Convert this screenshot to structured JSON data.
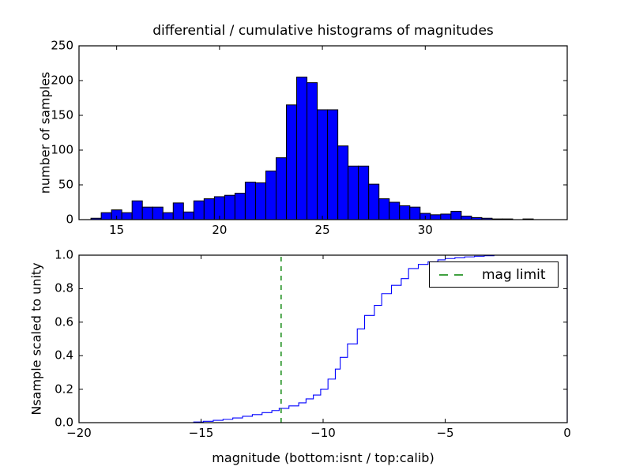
{
  "figure_title": "differential / cumulative histograms of magnitudes",
  "colors": {
    "bar_fill": "#0000ff",
    "bar_edge": "#000000",
    "line": "#0000ff",
    "mag_limit": "#008000",
    "frame": "#000000",
    "background": "#ffffff"
  },
  "legend": {
    "label": "mag limit",
    "position": "upper right"
  },
  "chart_data": [
    {
      "type": "bar",
      "subplot": "top",
      "title": "differential / cumulative histograms of magnitudes",
      "ylabel": "number of samples",
      "bin_start": 13.75,
      "bin_width": 0.5,
      "counts": [
        2,
        10,
        14,
        10,
        27,
        18,
        18,
        10,
        24,
        11,
        27,
        30,
        33,
        35,
        38,
        54,
        53,
        70,
        89,
        165,
        205,
        197,
        158,
        158,
        106,
        77,
        77,
        51,
        30,
        25,
        20,
        18,
        9,
        7,
        8,
        12,
        5,
        3,
        2,
        1,
        1,
        0,
        1,
        0,
        0
      ],
      "xlim": [
        13.17,
        36.9
      ],
      "ylim": [
        0,
        250
      ],
      "xticks": [
        15,
        20,
        25,
        30
      ],
      "xtick_labels": [
        "15",
        "20",
        "25",
        "30"
      ],
      "yticks": [
        0,
        50,
        100,
        150,
        200,
        250
      ],
      "ytick_labels": [
        "0",
        "50",
        "100",
        "150",
        "200",
        "250"
      ],
      "grid": false
    },
    {
      "type": "line",
      "subplot": "bottom",
      "style": "cumulative-step",
      "xlabel": "magnitude (bottom:isnt / top:calib)",
      "ylabel": "Nsample scaled to unity",
      "xlim": [
        -20,
        0
      ],
      "ylim": [
        0.0,
        1.0
      ],
      "xticks": [
        -20,
        -15,
        -10,
        -5,
        0
      ],
      "xtick_labels": [
        "−20",
        "−15",
        "−10",
        "−5",
        "0"
      ],
      "yticks": [
        0,
        0.2,
        0.4,
        0.6,
        0.8,
        1
      ],
      "ytick_labels": [
        "0.0",
        "0.2",
        "0.4",
        "0.6",
        "0.8",
        "1.0"
      ],
      "grid": false,
      "steps": [
        [
          -15.3,
          0.004
        ],
        [
          -14.9,
          0.008
        ],
        [
          -14.5,
          0.014
        ],
        [
          -14.1,
          0.02
        ],
        [
          -13.7,
          0.028
        ],
        [
          -13.3,
          0.038
        ],
        [
          -12.9,
          0.048
        ],
        [
          -12.5,
          0.06
        ],
        [
          -12.1,
          0.072
        ],
        [
          -11.8,
          0.085
        ],
        [
          -11.4,
          0.1
        ],
        [
          -11.0,
          0.118
        ],
        [
          -10.7,
          0.142
        ],
        [
          -10.4,
          0.165
        ],
        [
          -10.1,
          0.2
        ],
        [
          -9.8,
          0.26
        ],
        [
          -9.5,
          0.32
        ],
        [
          -9.3,
          0.39
        ],
        [
          -9.0,
          0.47
        ],
        [
          -8.6,
          0.56
        ],
        [
          -8.3,
          0.64
        ],
        [
          -7.9,
          0.7
        ],
        [
          -7.6,
          0.77
        ],
        [
          -7.2,
          0.82
        ],
        [
          -6.8,
          0.86
        ],
        [
          -6.5,
          0.92
        ],
        [
          -6.1,
          0.945
        ],
        [
          -5.7,
          0.96
        ],
        [
          -5.3,
          0.972
        ],
        [
          -5.0,
          0.98
        ],
        [
          -4.6,
          0.985
        ],
        [
          -4.2,
          0.99
        ],
        [
          -3.8,
          0.994
        ],
        [
          -3.4,
          0.997
        ],
        [
          -3.0,
          1.0
        ]
      ],
      "mag_limit_x": -11.72,
      "legend_label": "mag limit"
    }
  ]
}
